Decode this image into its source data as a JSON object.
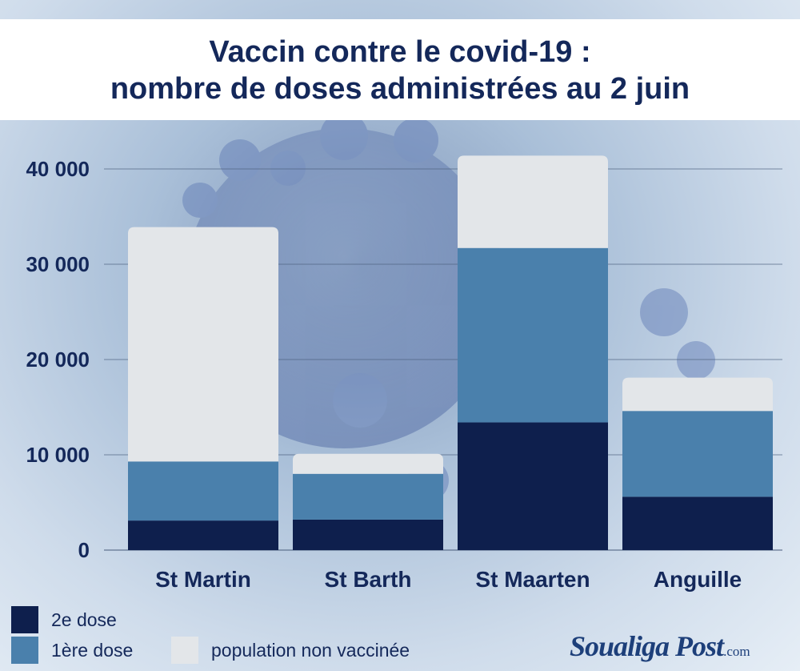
{
  "chart_data": {
    "type": "bar",
    "stacked": true,
    "title": "Vaccin contre le covid-19 :",
    "subtitle": "nombre de doses administrées au 2 juin",
    "categories": [
      "St Martin",
      "St Barth",
      "St Maarten",
      "Anguille"
    ],
    "series": [
      {
        "name": "2e dose",
        "color": "#0e1f4d",
        "values": [
          3100,
          3200,
          13400,
          5600
        ]
      },
      {
        "name": "1ère dose",
        "color": "#4a80ac",
        "values": [
          6200,
          4800,
          18300,
          9000
        ]
      },
      {
        "name": "population non vaccinée",
        "color": "#e3e6e9",
        "values": [
          24600,
          2100,
          9700,
          3500
        ]
      }
    ],
    "ylim": [
      0,
      40000
    ],
    "yticks": [
      0,
      10000,
      20000,
      30000,
      40000
    ],
    "ytick_labels": [
      "0",
      "10 000",
      "20 000",
      "30 000",
      "40 000"
    ],
    "grid": true,
    "legend_position": "bottom-left"
  },
  "logo": {
    "main": "Soualiga Post",
    "suffix": ".com"
  },
  "colors": {
    "title": "#14285a",
    "grid": "#4f6380"
  }
}
